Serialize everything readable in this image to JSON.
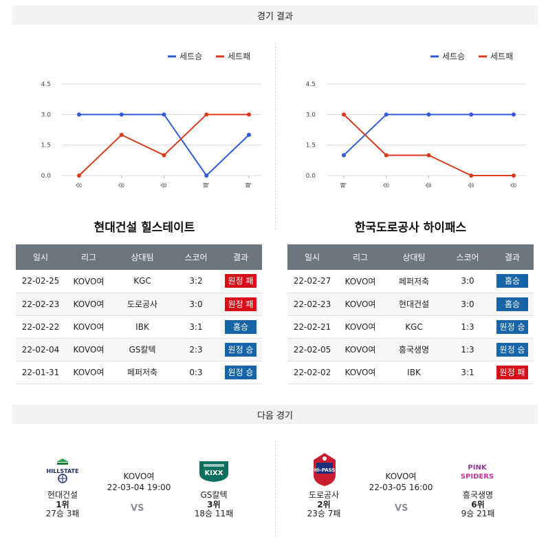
{
  "sections": {
    "results_title": "경기 결과",
    "next_title": "다음 경기"
  },
  "legend": {
    "win": "세트승",
    "lose": "세트패"
  },
  "colors": {
    "win": "#2f5bd6",
    "lose": "#d83a1a",
    "badge_win": "#1864a8",
    "badge_lose": "#d8101c"
  },
  "y_ticks": [
    "4.5",
    "3.0",
    "1.5",
    "0.0"
  ],
  "charts": [
    {
      "type": "line",
      "categories": [
        "승",
        "승",
        "승",
        "패",
        "패"
      ],
      "ylim": [
        0,
        4.5
      ],
      "series": [
        {
          "name": "세트승",
          "values": [
            3,
            3,
            3,
            0,
            2
          ]
        },
        {
          "name": "세트패",
          "values": [
            0,
            2,
            1,
            3,
            3
          ]
        }
      ]
    },
    {
      "type": "line",
      "categories": [
        "패",
        "승",
        "승",
        "승",
        "승"
      ],
      "ylim": [
        0,
        4.5
      ],
      "series": [
        {
          "name": "세트승",
          "values": [
            1,
            3,
            3,
            3,
            3
          ]
        },
        {
          "name": "세트패",
          "values": [
            3,
            1,
            1,
            0,
            0
          ]
        }
      ]
    }
  ],
  "teams": [
    {
      "title": "현대건설 힐스테이트",
      "headers": [
        "일시",
        "리그",
        "상대팀",
        "스코어",
        "결과"
      ],
      "rows": [
        {
          "date": "22-02-25",
          "league": "KOVO여",
          "opponent": "KGC",
          "score": "3:2",
          "result": "원정 패",
          "type": "lose"
        },
        {
          "date": "22-02-23",
          "league": "KOVO여",
          "opponent": "도로공사",
          "score": "3:0",
          "result": "원정 패",
          "type": "lose"
        },
        {
          "date": "22-02-22",
          "league": "KOVO여",
          "opponent": "IBK",
          "score": "3:1",
          "result": "홈승",
          "type": "win"
        },
        {
          "date": "22-02-04",
          "league": "KOVO여",
          "opponent": "GS칼텍",
          "score": "2:3",
          "result": "원정 승",
          "type": "win"
        },
        {
          "date": "22-01-31",
          "league": "KOVO여",
          "opponent": "페퍼저축",
          "score": "0:3",
          "result": "원정 승",
          "type": "win"
        }
      ]
    },
    {
      "title": "한국도로공사 하이패스",
      "headers": [
        "일시",
        "리그",
        "상대팀",
        "스코어",
        "결과"
      ],
      "rows": [
        {
          "date": "22-02-27",
          "league": "KOVO여",
          "opponent": "페퍼저축",
          "score": "3:0",
          "result": "홈승",
          "type": "win"
        },
        {
          "date": "22-02-23",
          "league": "KOVO여",
          "opponent": "현대건설",
          "score": "3:0",
          "result": "홈승",
          "type": "win"
        },
        {
          "date": "22-02-21",
          "league": "KOVO여",
          "opponent": "KGC",
          "score": "1:3",
          "result": "원정 승",
          "type": "win"
        },
        {
          "date": "22-02-05",
          "league": "KOVO여",
          "opponent": "흥국생명",
          "score": "1:3",
          "result": "원정 승",
          "type": "win"
        },
        {
          "date": "22-02-02",
          "league": "KOVO여",
          "opponent": "IBK",
          "score": "3:1",
          "result": "원정 패",
          "type": "lose"
        }
      ]
    }
  ],
  "next_games": [
    {
      "league": "KOVO여",
      "datetime": "22-03-04 19:00",
      "vs": "VS",
      "home": {
        "name": "현대건설",
        "rank": "1위",
        "record": "27승 3패",
        "logo": "hillstate-logo",
        "logo_text": "HILLSTATE"
      },
      "away": {
        "name": "GS칼텍",
        "rank": "3위",
        "record": "18승 11패",
        "logo": "kixx-logo",
        "logo_text": "KIXX"
      }
    },
    {
      "league": "KOVO여",
      "datetime": "22-03-05 16:00",
      "vs": "VS",
      "home": {
        "name": "도로공사",
        "rank": "2위",
        "record": "23승 7패",
        "logo": "hipass-logo",
        "logo_text": "Hi-PASS"
      },
      "away": {
        "name": "흥국생명",
        "rank": "6위",
        "record": "9승 21패",
        "logo": "pink-spiders-logo",
        "logo_text": "PINK SPIDERS"
      }
    }
  ]
}
